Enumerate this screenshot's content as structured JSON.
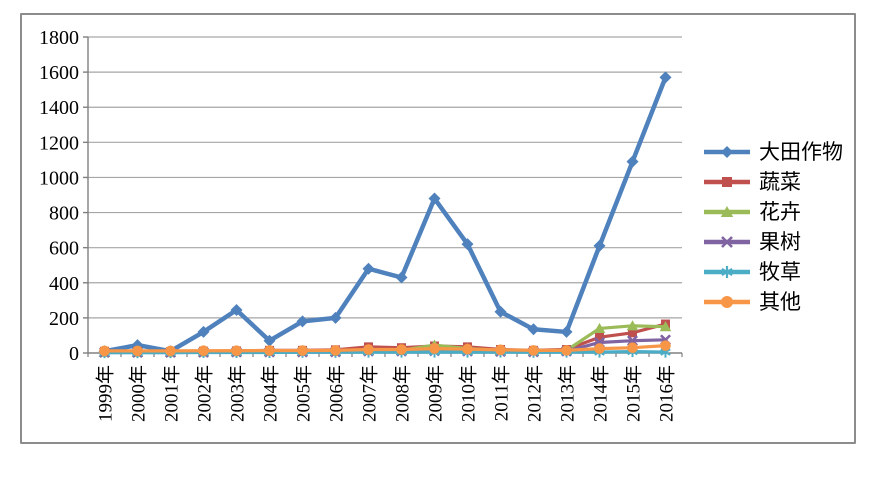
{
  "chart_data": {
    "type": "line",
    "title": "",
    "xlabel": "",
    "ylabel": "",
    "categories": [
      "1999年",
      "2000年",
      "2001年",
      "2002年",
      "2003年",
      "2004年",
      "2005年",
      "2006年",
      "2007年",
      "2008年",
      "2009年",
      "2010年",
      "2011年",
      "2012年",
      "2013年",
      "2014年",
      "2015年",
      "2016年"
    ],
    "y_axis": {
      "min": 0,
      "max": 1800,
      "step": 200,
      "tick_labels": [
        "0",
        "200",
        "400",
        "600",
        "800",
        "1000",
        "1200",
        "1400",
        "1600",
        "1800"
      ]
    },
    "grid": true,
    "legend_position": "right",
    "series": [
      {
        "name": "大田作物",
        "color": "#4F81BD",
        "marker": "diamond",
        "values": [
          10,
          45,
          10,
          120,
          245,
          70,
          180,
          200,
          480,
          430,
          880,
          620,
          235,
          135,
          120,
          610,
          1090,
          1570
        ]
      },
      {
        "name": "蔬菜",
        "color": "#C0504D",
        "marker": "square",
        "values": [
          10,
          10,
          8,
          10,
          12,
          15,
          15,
          18,
          35,
          30,
          40,
          35,
          20,
          15,
          20,
          90,
          115,
          165
        ]
      },
      {
        "name": "花卉",
        "color": "#9BBB59",
        "marker": "triangle",
        "values": [
          5,
          5,
          5,
          6,
          8,
          10,
          10,
          10,
          15,
          15,
          45,
          25,
          15,
          12,
          15,
          140,
          155,
          150
        ]
      },
      {
        "name": "果树",
        "color": "#8064A2",
        "marker": "x",
        "values": [
          3,
          3,
          3,
          4,
          5,
          5,
          5,
          6,
          10,
          10,
          12,
          10,
          8,
          6,
          10,
          60,
          70,
          75
        ]
      },
      {
        "name": "牧草",
        "color": "#4BACC6",
        "marker": "asterisk",
        "values": [
          2,
          2,
          2,
          3,
          3,
          3,
          4,
          4,
          5,
          5,
          5,
          5,
          5,
          4,
          5,
          5,
          8,
          5
        ]
      },
      {
        "name": "其他",
        "color": "#F79646",
        "marker": "circle",
        "values": [
          12,
          12,
          12,
          13,
          13,
          14,
          14,
          15,
          20,
          20,
          25,
          22,
          18,
          15,
          15,
          25,
          30,
          42
        ]
      }
    ]
  },
  "style": {
    "frame_border": "#8C8C8C",
    "grid_color": "#A6A6A6",
    "axis_color": "#808080",
    "label_color": "#000000",
    "background": "#FFFFFF"
  }
}
